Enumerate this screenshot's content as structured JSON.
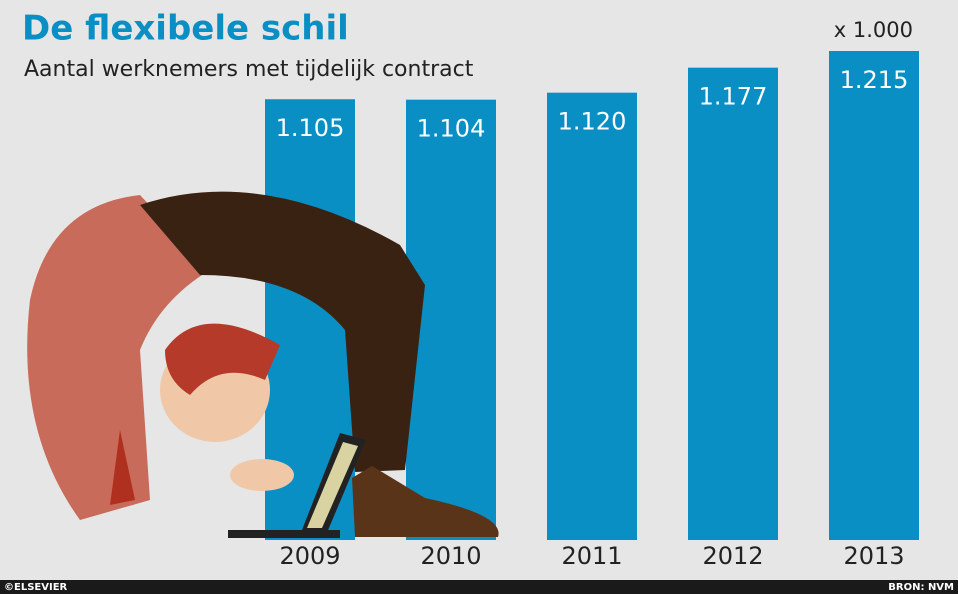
{
  "chart_data": {
    "type": "bar",
    "title": "De flexibele schil",
    "subtitle": "Aantal werknemers met tijdelijk contract",
    "unit_note": "x 1.000",
    "categories": [
      "2009",
      "2010",
      "2011",
      "2012",
      "2013"
    ],
    "values": [
      1105,
      1104,
      1120,
      1177,
      1215
    ],
    "value_labels": [
      "1.105",
      "1.104",
      "1.120",
      "1.177",
      "1.215"
    ],
    "color": "#0a8fc4",
    "ylim": [
      100,
      1215
    ],
    "credit": "©ELSEVIER",
    "source": "BRON: NVM"
  }
}
